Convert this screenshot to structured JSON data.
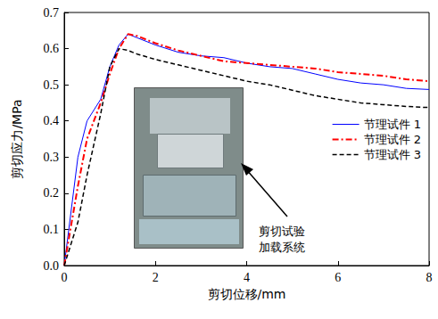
{
  "chart_data": {
    "type": "line",
    "x_label": "剪切位移/mm",
    "y_label": "剪切应力/MPa",
    "x": [
      0,
      0.3,
      0.5,
      0.8,
      1.0,
      1.2,
      1.4,
      1.6,
      2.0,
      2.5,
      3.0,
      3.5,
      4.0,
      4.5,
      5.0,
      5.5,
      6.0,
      6.5,
      7.0,
      7.5,
      8.0
    ],
    "series": [
      {
        "name": "节理试件 1",
        "color": "#0000ff",
        "line_style": "solid",
        "values": [
          0,
          0.3,
          0.4,
          0.46,
          0.55,
          0.61,
          0.64,
          0.63,
          0.61,
          0.59,
          0.58,
          0.575,
          0.56,
          0.55,
          0.545,
          0.53,
          0.515,
          0.505,
          0.5,
          0.49,
          0.487
        ]
      },
      {
        "name": "节理试件 2",
        "color": "#ff0000",
        "line_style": "dashdot",
        "values": [
          0,
          0.22,
          0.35,
          0.45,
          0.53,
          0.6,
          0.64,
          0.635,
          0.615,
          0.595,
          0.58,
          0.565,
          0.56,
          0.555,
          0.55,
          0.545,
          0.535,
          0.53,
          0.525,
          0.515,
          0.51
        ]
      },
      {
        "name": "节理试件 3",
        "color": "#000000",
        "line_style": "dashed",
        "values": [
          0,
          0.12,
          0.25,
          0.42,
          0.55,
          0.6,
          0.595,
          0.585,
          0.57,
          0.555,
          0.54,
          0.525,
          0.51,
          0.5,
          0.485,
          0.47,
          0.46,
          0.45,
          0.445,
          0.44,
          0.437
        ]
      }
    ],
    "xlim": [
      0,
      8
    ],
    "xticks": [
      0,
      2,
      4,
      6,
      8
    ],
    "ylim": [
      0,
      0.7
    ],
    "yticks": [
      {
        "value": 0,
        "label": "0.0"
      },
      0.1,
      0.2,
      0.3,
      0.4,
      0.5,
      0.6,
      0.7
    ],
    "annotations": [
      {
        "text": "剪切试验加载系统"
      }
    ],
    "legend": "right",
    "grid": false
  }
}
